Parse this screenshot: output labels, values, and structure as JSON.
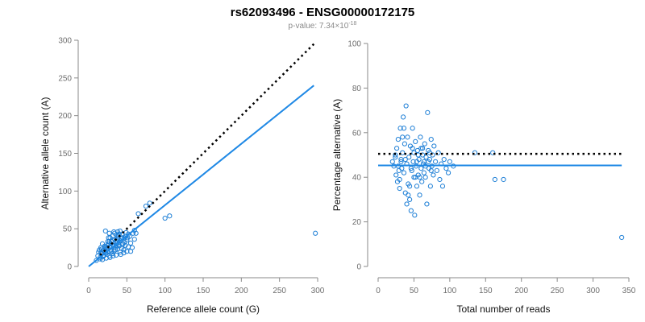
{
  "figure": {
    "title": "rs62093496 - ENSG00000172175",
    "subtitle_prefix": "p-value: 7.34×10",
    "subtitle_exponent": "-18"
  },
  "colors": {
    "points": "#1e7fd6",
    "fit_line": "#1e88e5",
    "reference_line": "#000000",
    "axis": "#8a8a8a",
    "tick_text": "#6e6e6e"
  },
  "chart_data": [
    {
      "type": "scatter",
      "name": "allele-count",
      "xlabel": "Reference allele count (G)",
      "ylabel": "Alternative allele count (A)",
      "xlim": [
        0,
        300
      ],
      "ylim": [
        0,
        300
      ],
      "xticks": [
        "0",
        "50",
        "100",
        "150",
        "200",
        "250",
        "300"
      ],
      "yticks": [
        "0",
        "50",
        "100",
        "150",
        "200",
        "250",
        "300"
      ],
      "grid": false,
      "reference_line": {
        "style": "dotted",
        "from": [
          15,
          15
        ],
        "to": [
          295,
          295
        ]
      },
      "fit_line": {
        "style": "solid",
        "from": [
          0,
          0
        ],
        "to": [
          295,
          240
        ]
      },
      "points": [
        [
          10,
          8
        ],
        [
          12,
          14
        ],
        [
          13,
          19
        ],
        [
          14,
          22
        ],
        [
          15,
          12
        ],
        [
          16,
          25
        ],
        [
          17,
          17
        ],
        [
          18,
          9
        ],
        [
          19,
          21
        ],
        [
          20,
          15
        ],
        [
          21,
          27
        ],
        [
          22,
          18
        ],
        [
          23,
          11
        ],
        [
          24,
          24
        ],
        [
          25,
          20
        ],
        [
          26,
          30
        ],
        [
          27,
          14
        ],
        [
          28,
          26
        ],
        [
          29,
          22
        ],
        [
          30,
          33
        ],
        [
          31,
          17
        ],
        [
          32,
          28
        ],
        [
          33,
          20
        ],
        [
          34,
          36
        ],
        [
          35,
          25
        ],
        [
          36,
          15
        ],
        [
          37,
          31
        ],
        [
          38,
          23
        ],
        [
          39,
          40
        ],
        [
          40,
          27
        ],
        [
          41,
          19
        ],
        [
          42,
          34
        ],
        [
          43,
          24
        ],
        [
          44,
          42
        ],
        [
          45,
          30
        ],
        [
          46,
          22
        ],
        [
          47,
          38
        ],
        [
          48,
          28
        ],
        [
          49,
          45
        ],
        [
          50,
          35
        ],
        [
          52,
          26
        ],
        [
          54,
          40
        ],
        [
          55,
          31
        ],
        [
          58,
          44
        ],
        [
          60,
          36
        ],
        [
          22,
          47
        ],
        [
          18,
          30
        ],
        [
          26,
          38
        ],
        [
          30,
          20
        ],
        [
          34,
          44
        ],
        [
          38,
          46
        ],
        [
          42,
          16
        ],
        [
          46,
          18
        ],
        [
          50,
          20
        ],
        [
          25,
          33
        ],
        [
          28,
          38
        ],
        [
          32,
          41
        ],
        [
          36,
          34
        ],
        [
          40,
          43
        ],
        [
          44,
          38
        ],
        [
          16,
          18
        ],
        [
          20,
          22
        ],
        [
          24,
          16
        ],
        [
          28,
          12
        ],
        [
          32,
          14
        ],
        [
          36,
          28
        ],
        [
          40,
          32
        ],
        [
          44,
          30
        ],
        [
          48,
          40
        ],
        [
          52,
          43
        ],
        [
          55,
          20
        ],
        [
          57,
          25
        ],
        [
          60,
          48
        ],
        [
          62,
          44
        ],
        [
          65,
          70
        ],
        [
          75,
          80
        ],
        [
          80,
          84
        ],
        [
          100,
          64
        ],
        [
          106,
          67
        ],
        [
          297,
          44
        ],
        [
          15,
          10
        ],
        [
          19,
          13
        ],
        [
          23,
          26
        ],
        [
          27,
          33
        ],
        [
          31,
          35
        ],
        [
          35,
          22
        ],
        [
          39,
          29
        ],
        [
          43,
          37
        ],
        [
          47,
          32
        ],
        [
          51,
          38
        ],
        [
          27,
          44
        ],
        [
          33,
          46
        ],
        [
          37,
          42
        ],
        [
          41,
          47
        ],
        [
          17,
          23
        ],
        [
          21,
          24
        ],
        [
          25,
          28
        ],
        [
          29,
          30
        ],
        [
          33,
          27
        ],
        [
          37,
          37
        ]
      ]
    },
    {
      "type": "scatter",
      "name": "percentage-alternative",
      "xlabel": "Total number of reads",
      "ylabel": "Percentage alternative (A)",
      "xlim": [
        0,
        350
      ],
      "ylim": [
        0,
        100
      ],
      "xticks": [
        "0",
        "50",
        "100",
        "150",
        "200",
        "250",
        "300",
        "350"
      ],
      "yticks": [
        "0",
        "20",
        "40",
        "60",
        "80",
        "100"
      ],
      "grid": false,
      "reference_line": {
        "style": "dotted",
        "from": [
          0,
          50.5
        ],
        "to": [
          340,
          50.5
        ]
      },
      "fit_line": {
        "style": "solid",
        "from": [
          0,
          45.3
        ],
        "to": [
          340,
          45.3
        ]
      },
      "points": [
        [
          20,
          47
        ],
        [
          22,
          45
        ],
        [
          24,
          49
        ],
        [
          25,
          41
        ],
        [
          26,
          53
        ],
        [
          27,
          38
        ],
        [
          28,
          57
        ],
        [
          29,
          43
        ],
        [
          30,
          35
        ],
        [
          31,
          62
        ],
        [
          32,
          48
        ],
        [
          33,
          44
        ],
        [
          34,
          51
        ],
        [
          35,
          67
        ],
        [
          36,
          42
        ],
        [
          37,
          55
        ],
        [
          38,
          33
        ],
        [
          39,
          72
        ],
        [
          40,
          46
        ],
        [
          41,
          58
        ],
        [
          42,
          37
        ],
        [
          43,
          49
        ],
        [
          44,
          30
        ],
        [
          45,
          54
        ],
        [
          46,
          25
        ],
        [
          47,
          43
        ],
        [
          48,
          62
        ],
        [
          49,
          47
        ],
        [
          50,
          40
        ],
        [
          51,
          23
        ],
        [
          52,
          56
        ],
        [
          53,
          45
        ],
        [
          54,
          36
        ],
        [
          55,
          52
        ],
        [
          56,
          41
        ],
        [
          57,
          48
        ],
        [
          58,
          32
        ],
        [
          59,
          58
        ],
        [
          60,
          44
        ],
        [
          61,
          38
        ],
        [
          62,
          53
        ],
        [
          63,
          46
        ],
        [
          64,
          42
        ],
        [
          65,
          55
        ],
        [
          66,
          40
        ],
        [
          67,
          49
        ],
        [
          68,
          28
        ],
        [
          69,
          69
        ],
        [
          70,
          52
        ],
        [
          71,
          44
        ],
        [
          72,
          48
        ],
        [
          73,
          36
        ],
        [
          74,
          57
        ],
        [
          75,
          45
        ],
        [
          76,
          50
        ],
        [
          77,
          41
        ],
        [
          78,
          54
        ],
        [
          80,
          47
        ],
        [
          82,
          43
        ],
        [
          84,
          51
        ],
        [
          86,
          39
        ],
        [
          88,
          46
        ],
        [
          90,
          36
        ],
        [
          92,
          48
        ],
        [
          95,
          44
        ],
        [
          98,
          42
        ],
        [
          100,
          47
        ],
        [
          105,
          45
        ],
        [
          30,
          39
        ],
        [
          34,
          58
        ],
        [
          38,
          48
        ],
        [
          42,
          32
        ],
        [
          46,
          44
        ],
        [
          50,
          51
        ],
        [
          54,
          47
        ],
        [
          58,
          40
        ],
        [
          62,
          50
        ],
        [
          66,
          45
        ],
        [
          70,
          47
        ],
        [
          74,
          43
        ],
        [
          36,
          62
        ],
        [
          44,
          36
        ],
        [
          52,
          40
        ],
        [
          60,
          53
        ],
        [
          24,
          50
        ],
        [
          28,
          45
        ],
        [
          32,
          47
        ],
        [
          40,
          28
        ],
        [
          48,
          53
        ],
        [
          56,
          50
        ],
        [
          64,
          47
        ],
        [
          72,
          51
        ],
        [
          135,
          51
        ],
        [
          160,
          51
        ],
        [
          163,
          39
        ],
        [
          175,
          39
        ],
        [
          340,
          13
        ]
      ]
    }
  ]
}
